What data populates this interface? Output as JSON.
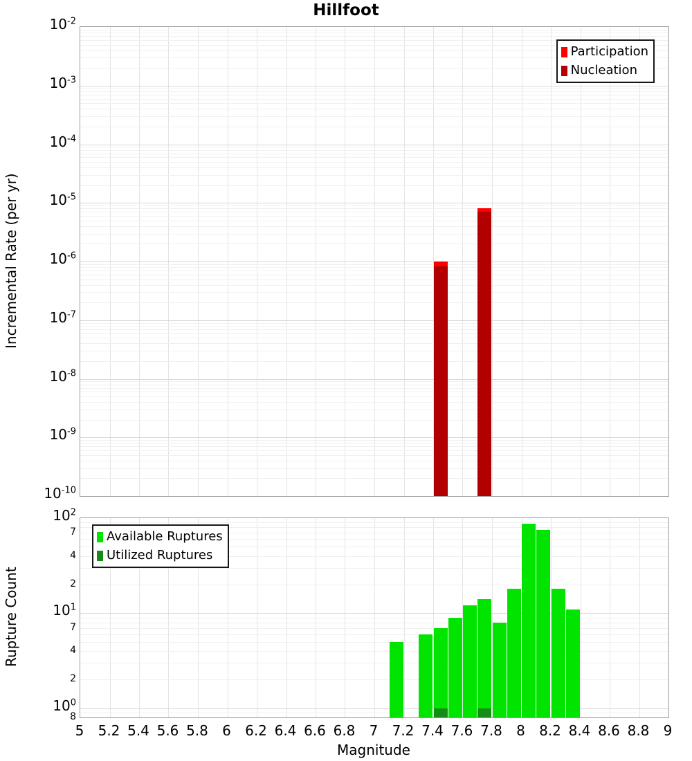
{
  "title": "Hillfoot",
  "chart_data": [
    {
      "type": "bar",
      "panel": "top",
      "title": "Hillfoot",
      "ylabel": "Incremental Rate (per yr)",
      "y_scale": "log",
      "ylim": [
        1e-10,
        0.01
      ],
      "xlim": [
        5,
        9
      ],
      "grid": true,
      "bar_width_mag": 0.09,
      "y_ticks": {
        "major_exponents": [
          -2,
          -3,
          -4,
          -5,
          -6,
          -7,
          -8,
          -9,
          -10
        ]
      },
      "legend": {
        "position": "top-right",
        "entries": [
          {
            "name": "Participation",
            "color": "#ff0000"
          },
          {
            "name": "Nucleation",
            "color": "#b20000"
          }
        ]
      },
      "series": [
        {
          "name": "Participation",
          "color": "#ff0000",
          "x": [
            7.45,
            7.75
          ],
          "y": [
            1e-06,
            8e-06
          ]
        },
        {
          "name": "Nucleation",
          "color": "#b20000",
          "x": [
            7.45,
            7.75
          ],
          "y": [
            8.3e-07,
            7e-06
          ]
        }
      ]
    },
    {
      "type": "bar",
      "panel": "bottom",
      "ylabel": "Rupture Count",
      "xlabel": "Magnitude",
      "y_scale": "log",
      "ylim": [
        0.8,
        100
      ],
      "xlim": [
        5,
        9
      ],
      "grid": true,
      "bar_width_mag": 0.09,
      "y_ticks": {
        "major_exponents": [
          2,
          1,
          0
        ],
        "minor": [
          {
            "value": 70,
            "label": "7"
          },
          {
            "value": 40,
            "label": "4"
          },
          {
            "value": 20,
            "label": "2"
          },
          {
            "value": 7,
            "label": "7"
          },
          {
            "value": 4,
            "label": "4"
          },
          {
            "value": 2,
            "label": "2"
          },
          {
            "value": 0.8,
            "label": "8"
          }
        ]
      },
      "x_ticks": [
        {
          "value": 5,
          "label": "5"
        },
        {
          "value": 5.2,
          "label": "5.2"
        },
        {
          "value": 5.4,
          "label": "5.4"
        },
        {
          "value": 5.6,
          "label": "5.6"
        },
        {
          "value": 5.8,
          "label": "5.8"
        },
        {
          "value": 6,
          "label": "6"
        },
        {
          "value": 6.2,
          "label": "6.2"
        },
        {
          "value": 6.4,
          "label": "6.4"
        },
        {
          "value": 6.6,
          "label": "6.6"
        },
        {
          "value": 6.8,
          "label": "6.8"
        },
        {
          "value": 7,
          "label": "7"
        },
        {
          "value": 7.2,
          "label": "7.2"
        },
        {
          "value": 7.4,
          "label": "7.4"
        },
        {
          "value": 7.6,
          "label": "7.6"
        },
        {
          "value": 7.8,
          "label": "7.8"
        },
        {
          "value": 8,
          "label": "8"
        },
        {
          "value": 8.2,
          "label": "8.2"
        },
        {
          "value": 8.4,
          "label": "8.4"
        },
        {
          "value": 8.6,
          "label": "8.6"
        },
        {
          "value": 8.8,
          "label": "8.8"
        },
        {
          "value": 9,
          "label": "9"
        }
      ],
      "legend": {
        "position": "top-left",
        "entries": [
          {
            "name": "Available Ruptures",
            "color": "#00e400"
          },
          {
            "name": "Utilized Ruptures",
            "color": "#168c16"
          }
        ]
      },
      "series": [
        {
          "name": "Available Ruptures",
          "color": "#00e400",
          "x": [
            7.15,
            7.35,
            7.45,
            7.55,
            7.65,
            7.75,
            7.85,
            7.95,
            8.05,
            8.15,
            8.25,
            8.35
          ],
          "y": [
            5,
            6,
            7,
            9,
            12,
            14,
            8,
            18,
            88,
            75,
            18,
            11
          ]
        },
        {
          "name": "Utilized Ruptures",
          "color": "#168c16",
          "x": [
            7.45,
            7.75
          ],
          "y": [
            1,
            1
          ]
        }
      ]
    }
  ]
}
